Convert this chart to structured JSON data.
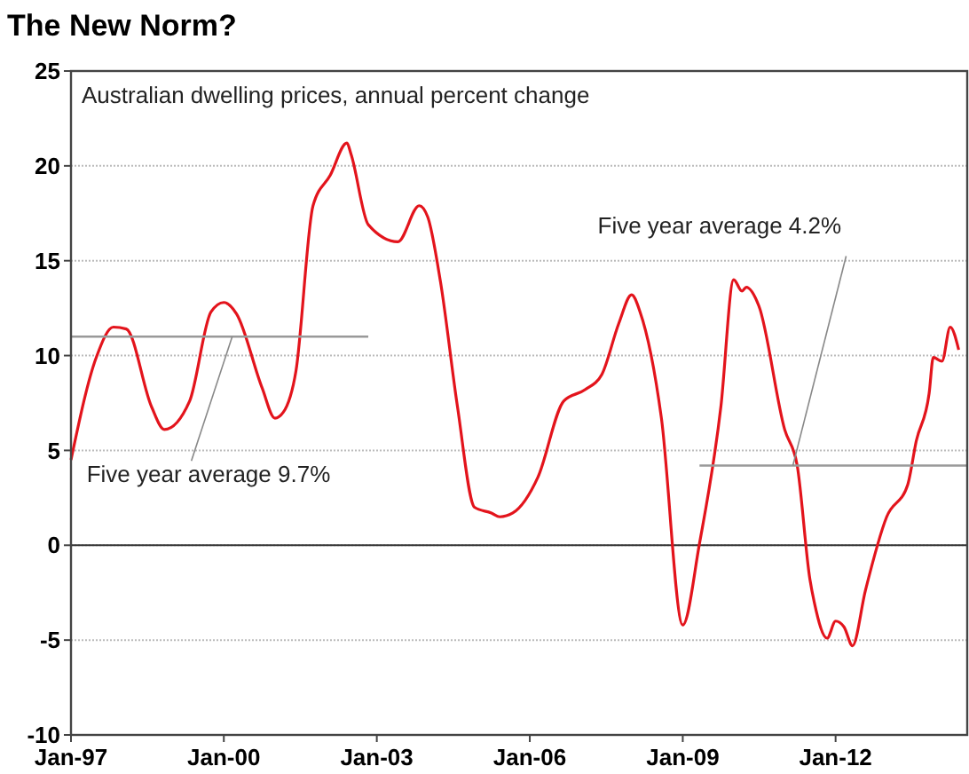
{
  "chart_data": {
    "type": "line",
    "title": "The New Norm?",
    "subtitle": "Australian dwelling prices, annual percent change",
    "series": [
      {
        "color": "#e3141c",
        "x": [
          "1997-01",
          "1997-07",
          "1997-11",
          "1998-02",
          "1998-08",
          "1998-11",
          "1999-05",
          "1999-10",
          "2000-01",
          "2000-04",
          "2000-10",
          "2001-01",
          "2001-03",
          "2001-06",
          "2001-10",
          "2002-02",
          "2002-06",
          "2002-07",
          "2002-11",
          "2003-06",
          "2003-11",
          "2004-01",
          "2004-04",
          "2004-08",
          "2004-12",
          "2005-04",
          "2005-06",
          "2005-09",
          "2006-03",
          "2006-09",
          "2007-02",
          "2007-06",
          "2007-10",
          "2008-01",
          "2008-03",
          "2008-08",
          "2009-01",
          "2009-05",
          "2009-10",
          "2010-01",
          "2010-03",
          "2010-04",
          "2010-07",
          "2011-01",
          "2011-04",
          "2011-07",
          "2011-08",
          "2011-11",
          "2012-01",
          "2012-03",
          "2012-05",
          "2012-08",
          "2013-01",
          "2013-06",
          "2013-08",
          "2013-11",
          "2013-12",
          "2014-02",
          "2014-04",
          "2014-06"
        ],
        "values": [
          4.5,
          9.9,
          11.5,
          11.4,
          7.3,
          6.1,
          7.6,
          12.3,
          12.8,
          12.2,
          8.3,
          6.7,
          7.0,
          9.2,
          17.9,
          19.5,
          21.2,
          20.6,
          16.9,
          16.0,
          17.9,
          17.3,
          13.9,
          7.3,
          2.0,
          1.7,
          1.5,
          1.7,
          3.6,
          7.6,
          8.2,
          9.0,
          11.7,
          13.2,
          12.3,
          6.7,
          -4.2,
          0.1,
          7.3,
          14.0,
          13.4,
          13.6,
          12.6,
          6.1,
          4.2,
          -1.8,
          -3.0,
          -4.9,
          -4.0,
          -4.3,
          -5.3,
          -2.4,
          1.5,
          3.2,
          5.5,
          8.0,
          9.9,
          9.7,
          11.5,
          10.3
        ]
      },
      {
        "color": "#999999",
        "x": [
          "1997-01",
          "2002-11"
        ],
        "values": [
          11,
          11
        ]
      },
      {
        "color": "#999999",
        "x": [
          "2009-05",
          "2014-08"
        ],
        "values": [
          4.2,
          4.2
        ]
      }
    ],
    "annotations": [
      {
        "text": "Five year average 9.7%",
        "x": "2000-03",
        "y": 11
      },
      {
        "text": "Five year average 4.2%",
        "x": "2011-03",
        "y": 4.2
      }
    ],
    "xlim": [
      "1997-01",
      "2014-08"
    ],
    "xticks": [
      {
        "value": "1997-01",
        "label": "Jan-97"
      },
      {
        "value": "2000-01",
        "label": "Jan-00"
      },
      {
        "value": "2003-01",
        "label": "Jan-03"
      },
      {
        "value": "2006-01",
        "label": "Jan-06"
      },
      {
        "value": "2009-01",
        "label": "Jan-09"
      },
      {
        "value": "2012-01",
        "label": "Jan-12"
      }
    ],
    "ylim": [
      -10,
      25
    ],
    "yticks": [
      -10,
      -5,
      0,
      5,
      10,
      15,
      20,
      25
    ],
    "ref_lines": [
      {
        "axis": "y",
        "value": 0,
        "color": "#333333"
      }
    ],
    "grid": "y",
    "marker": "none",
    "line_style": "solid"
  }
}
